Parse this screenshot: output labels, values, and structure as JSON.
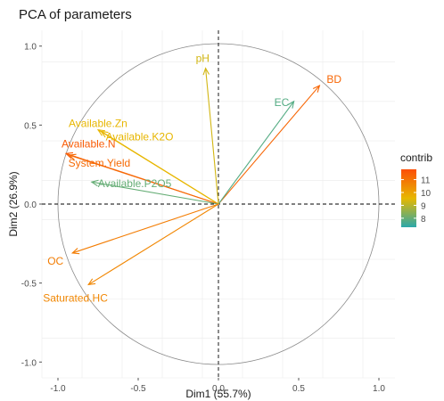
{
  "chart_data": {
    "type": "scatter",
    "title": "PCA of parameters",
    "xlabel": "Dim1 (55.7%)",
    "ylabel": "Dim2 (26.9%)",
    "xlim": [
      -1.1,
      1.1
    ],
    "ylim": [
      -1.1,
      1.1
    ],
    "xticks": [
      -1.0,
      -0.5,
      0.0,
      0.5,
      1.0
    ],
    "yticks": [
      -1.0,
      -0.5,
      0.0,
      0.5,
      1.0
    ],
    "xtick_labels": [
      "-1.0",
      "-0.5",
      "0.0",
      "0.5",
      "1.0"
    ],
    "ytick_labels": [
      "-1.0",
      "-0.5",
      "0.0",
      "0.5",
      "1.0"
    ],
    "grid": true,
    "legend": {
      "title": "contrib",
      "placement": "right",
      "range": [
        7.3,
        11.8
      ],
      "ticks": [
        8,
        9,
        10,
        11
      ],
      "tick_labels": [
        "8",
        "9",
        "10",
        "11"
      ],
      "colors": [
        "#2BA8AA",
        "#E7B800",
        "#FC4E07"
      ]
    },
    "variables": [
      {
        "name": "BD",
        "x": 0.63,
        "y": 0.75,
        "contrib": 11.3
      },
      {
        "name": "EC",
        "x": 0.47,
        "y": 0.65,
        "contrib": 7.8
      },
      {
        "name": "pH",
        "x": -0.08,
        "y": 0.86,
        "contrib": 9.3
      },
      {
        "name": "Available.Zn",
        "x": -0.75,
        "y": 0.47,
        "contrib": 9.6
      },
      {
        "name": "Available.K2O",
        "x": -0.73,
        "y": 0.46,
        "contrib": 9.6
      },
      {
        "name": "Available.N",
        "x": -0.95,
        "y": 0.32,
        "contrib": 11.5
      },
      {
        "name": "System.Yield",
        "x": -0.93,
        "y": 0.31,
        "contrib": 11.2
      },
      {
        "name": "Available.P2O5",
        "x": -0.79,
        "y": 0.14,
        "contrib": 8.0
      },
      {
        "name": "OC",
        "x": -0.91,
        "y": -0.31,
        "contrib": 10.8
      },
      {
        "name": "Saturated.HC",
        "x": -0.81,
        "y": -0.51,
        "contrib": 10.6
      }
    ]
  }
}
